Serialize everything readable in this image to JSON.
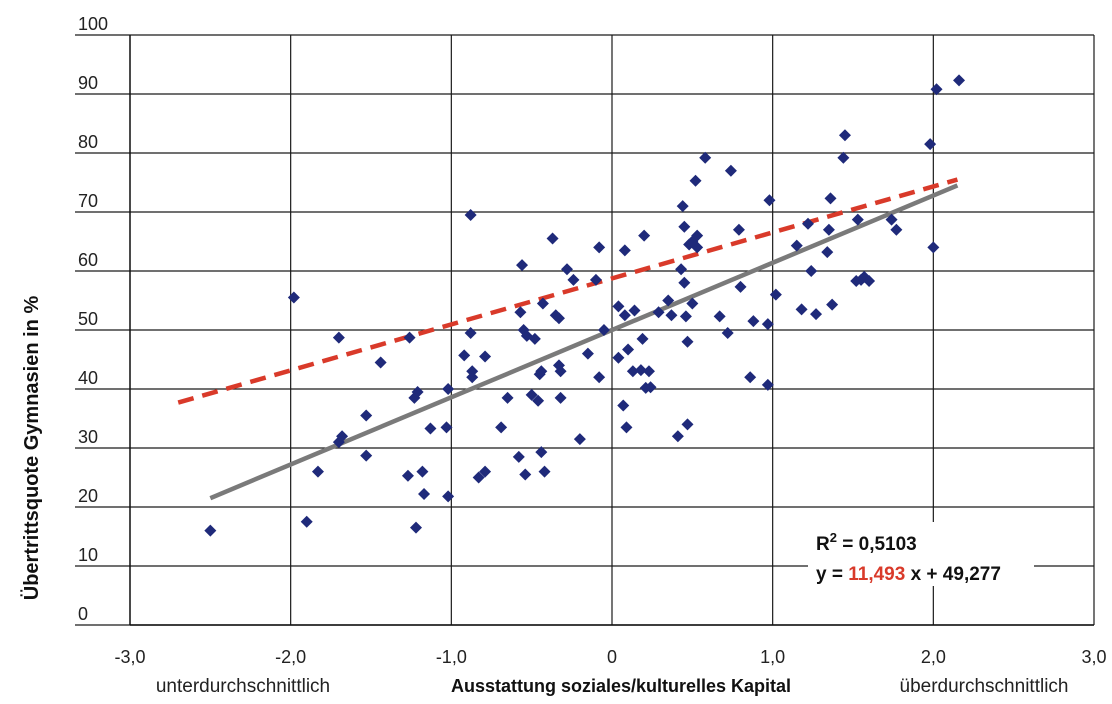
{
  "chart_data": {
    "type": "scatter",
    "title": "",
    "ylabel": "Übertrittsquote Gymnasien in %",
    "xlabel": "Ausstattung soziales/kulturelles Kapital",
    "x_side_labels": {
      "left": "unterdurchschnittlich",
      "right": "überdurchschnittlich"
    },
    "xlim": [
      -3,
      3
    ],
    "ylim": [
      0,
      100
    ],
    "x_ticks": [
      -3,
      -2,
      -1,
      0,
      1,
      2,
      3
    ],
    "x_tick_labels": [
      "-3,0",
      "-2,0",
      "-1,0",
      "0",
      "1,0",
      "2,0",
      "3,0"
    ],
    "y_ticks": [
      0,
      10,
      20,
      30,
      40,
      50,
      60,
      70,
      80,
      90,
      100
    ],
    "y_tick_labels": [
      "0",
      "10",
      "20",
      "30",
      "40",
      "50",
      "60",
      "70",
      "80",
      "90",
      "100"
    ],
    "grid": true,
    "marker_color": "#1f2a7a",
    "annotation": {
      "r2_prefix": "R",
      "r2_sup": "2",
      "r2_value": " = 0,5103",
      "eq_prefix": "y = ",
      "eq_slope": "11,493",
      "eq_suffix": " x + 49,277"
    },
    "trendlines": [
      {
        "style": "solid",
        "color": "#7a7a7a",
        "x": [
          -2.5,
          2.15
        ],
        "y": [
          21.5,
          74.5
        ]
      },
      {
        "style": "dashed",
        "color": "#d93a2a",
        "x": [
          -2.7,
          2.15
        ],
        "y": [
          37.7,
          75.5
        ]
      }
    ],
    "points": [
      [
        -2.5,
        16
      ],
      [
        -1.98,
        55.5
      ],
      [
        -1.9,
        17.5
      ],
      [
        -1.83,
        26
      ],
      [
        -1.7,
        48.7
      ],
      [
        -1.7,
        31
      ],
      [
        -1.68,
        32
      ],
      [
        -1.53,
        35.5
      ],
      [
        -1.53,
        28.7
      ],
      [
        -1.44,
        44.5
      ],
      [
        -1.27,
        25.3
      ],
      [
        -1.26,
        48.7
      ],
      [
        -1.23,
        38.5
      ],
      [
        -1.22,
        16.5
      ],
      [
        -1.21,
        39.5
      ],
      [
        -1.18,
        26
      ],
      [
        -1.17,
        22.2
      ],
      [
        -1.13,
        33.3
      ],
      [
        -1.03,
        33.5
      ],
      [
        -1.02,
        40
      ],
      [
        -1.02,
        21.8
      ],
      [
        -0.92,
        45.7
      ],
      [
        -0.88,
        69.5
      ],
      [
        -0.88,
        49.5
      ],
      [
        -0.87,
        43
      ],
      [
        -0.87,
        42
      ],
      [
        -0.83,
        25
      ],
      [
        -0.79,
        26
      ],
      [
        -0.79,
        45.5
      ],
      [
        -0.69,
        33.5
      ],
      [
        -0.65,
        38.5
      ],
      [
        -0.58,
        28.5
      ],
      [
        -0.57,
        53
      ],
      [
        -0.56,
        61
      ],
      [
        -0.55,
        50
      ],
      [
        -0.54,
        25.5
      ],
      [
        -0.53,
        49
      ],
      [
        -0.5,
        39
      ],
      [
        -0.48,
        48.5
      ],
      [
        -0.46,
        38
      ],
      [
        -0.45,
        42.5
      ],
      [
        -0.44,
        43
      ],
      [
        -0.44,
        29.3
      ],
      [
        -0.43,
        54.5
      ],
      [
        -0.42,
        26
      ],
      [
        -0.37,
        65.5
      ],
      [
        -0.35,
        52.5
      ],
      [
        -0.33,
        52
      ],
      [
        -0.33,
        44
      ],
      [
        -0.32,
        38.5
      ],
      [
        -0.32,
        43
      ],
      [
        -0.28,
        60.3
      ],
      [
        -0.24,
        58.5
      ],
      [
        -0.2,
        31.5
      ],
      [
        -0.15,
        46
      ],
      [
        -0.1,
        58.5
      ],
      [
        -0.08,
        64
      ],
      [
        -0.08,
        42
      ],
      [
        -0.05,
        50
      ],
      [
        0.04,
        54
      ],
      [
        0.04,
        45.3
      ],
      [
        0.07,
        37.2
      ],
      [
        0.08,
        63.5
      ],
      [
        0.08,
        52.5
      ],
      [
        0.09,
        33.5
      ],
      [
        0.1,
        46.7
      ],
      [
        0.13,
        43
      ],
      [
        0.14,
        53.3
      ],
      [
        0.18,
        43.2
      ],
      [
        0.19,
        48.5
      ],
      [
        0.2,
        66
      ],
      [
        0.21,
        40.2
      ],
      [
        0.23,
        43
      ],
      [
        0.24,
        40.3
      ],
      [
        0.29,
        53
      ],
      [
        0.35,
        55
      ],
      [
        0.37,
        52.5
      ],
      [
        0.41,
        32
      ],
      [
        0.43,
        60.3
      ],
      [
        0.44,
        71
      ],
      [
        0.45,
        67.5
      ],
      [
        0.45,
        58
      ],
      [
        0.46,
        52.3
      ],
      [
        0.47,
        48
      ],
      [
        0.47,
        34
      ],
      [
        0.48,
        64.5
      ],
      [
        0.5,
        54.5
      ],
      [
        0.5,
        65
      ],
      [
        0.52,
        75.3
      ],
      [
        0.53,
        64
      ],
      [
        0.53,
        66
      ],
      [
        0.58,
        79.2
      ],
      [
        0.67,
        52.3
      ],
      [
        0.72,
        49.5
      ],
      [
        0.74,
        77
      ],
      [
        0.79,
        67
      ],
      [
        0.8,
        57.3
      ],
      [
        0.86,
        42
      ],
      [
        0.88,
        51.5
      ],
      [
        0.97,
        51
      ],
      [
        0.97,
        40.7
      ],
      [
        0.98,
        72
      ],
      [
        1.02,
        56
      ],
      [
        1.15,
        64.3
      ],
      [
        1.18,
        53.5
      ],
      [
        1.22,
        68
      ],
      [
        1.24,
        60
      ],
      [
        1.27,
        52.7
      ],
      [
        1.34,
        63.2
      ],
      [
        1.35,
        67
      ],
      [
        1.36,
        72.3
      ],
      [
        1.37,
        54.3
      ],
      [
        1.44,
        79.2
      ],
      [
        1.45,
        83
      ],
      [
        1.52,
        58.3
      ],
      [
        1.53,
        68.7
      ],
      [
        1.55,
        58.5
      ],
      [
        1.57,
        59
      ],
      [
        1.6,
        58.3
      ],
      [
        1.74,
        68.7
      ],
      [
        1.77,
        67
      ],
      [
        1.98,
        81.5
      ],
      [
        2.0,
        64
      ],
      [
        2.02,
        90.8
      ],
      [
        2.16,
        92.3
      ]
    ]
  }
}
